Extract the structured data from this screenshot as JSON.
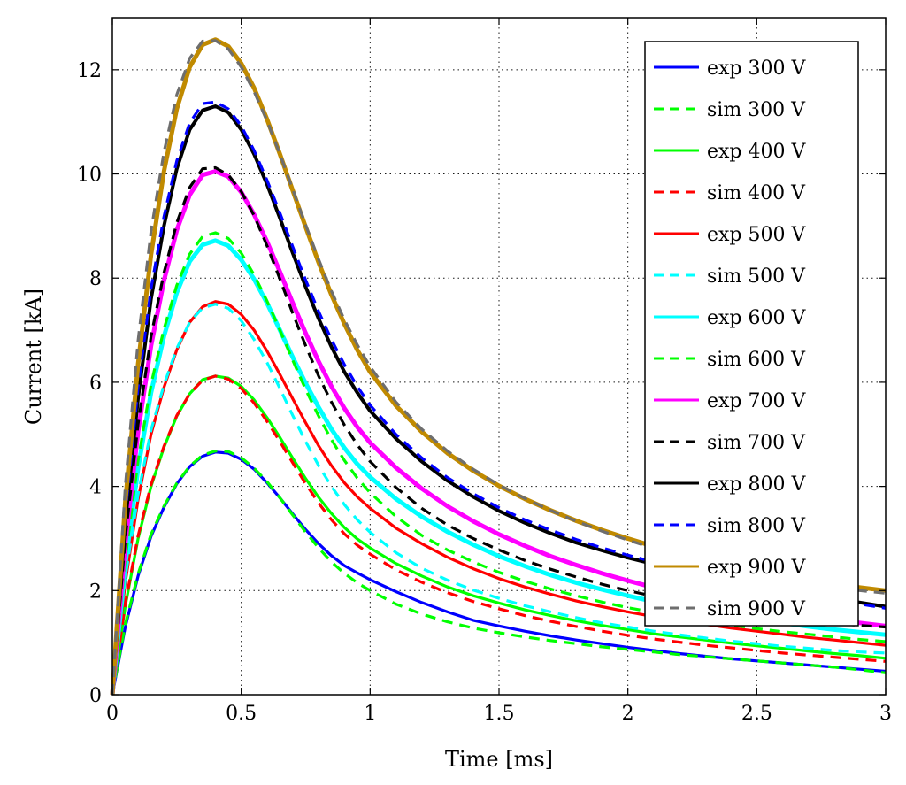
{
  "chart_data": {
    "type": "line",
    "title": "",
    "xlabel": "Time [ms]",
    "ylabel": "Current [kA]",
    "xlim": [
      0,
      3
    ],
    "ylim": [
      0,
      13
    ],
    "xticks": [
      0,
      0.5,
      1,
      1.5,
      2,
      2.5,
      3
    ],
    "xtick_labels": [
      "0",
      "0.5",
      "1",
      "1.5",
      "2",
      "2.5",
      "3"
    ],
    "yticks": [
      0,
      2,
      4,
      6,
      8,
      10,
      12
    ],
    "ytick_labels": [
      "0",
      "2",
      "4",
      "6",
      "8",
      "10",
      "12"
    ],
    "grid": true,
    "legend_position": "top-right",
    "x": [
      0,
      0.05,
      0.1,
      0.15,
      0.2,
      0.25,
      0.3,
      0.35,
      0.4,
      0.45,
      0.5,
      0.55,
      0.6,
      0.65,
      0.7,
      0.75,
      0.8,
      0.85,
      0.9,
      0.95,
      1.0,
      1.1,
      1.2,
      1.3,
      1.4,
      1.5,
      1.6,
      1.7,
      1.8,
      1.9,
      2.0,
      2.1,
      2.2,
      2.3,
      2.4,
      2.5,
      2.6,
      2.7,
      2.8,
      2.9,
      3.0
    ],
    "series": [
      {
        "name": "exp 300 V",
        "color": "#0000ff",
        "style": "solid",
        "width": 3.2,
        "values": [
          0,
          1.3,
          2.28,
          3.04,
          3.6,
          4.05,
          4.38,
          4.58,
          4.66,
          4.64,
          4.52,
          4.33,
          4.07,
          3.78,
          3.47,
          3.17,
          2.9,
          2.67,
          2.48,
          2.34,
          2.21,
          1.98,
          1.77,
          1.59,
          1.43,
          1.32,
          1.22,
          1.13,
          1.05,
          0.98,
          0.91,
          0.85,
          0.79,
          0.74,
          0.69,
          0.65,
          0.61,
          0.57,
          0.53,
          0.49,
          0.45
        ]
      },
      {
        "name": "sim 300 V",
        "color": "#00ff00",
        "style": "dashed",
        "width": 3.2,
        "values": [
          0,
          1.35,
          2.32,
          3.08,
          3.62,
          4.06,
          4.39,
          4.6,
          4.68,
          4.67,
          4.55,
          4.35,
          4.09,
          3.78,
          3.45,
          3.12,
          2.82,
          2.55,
          2.33,
          2.15,
          2.0,
          1.74,
          1.55,
          1.4,
          1.28,
          1.19,
          1.11,
          1.04,
          0.98,
          0.92,
          0.87,
          0.82,
          0.77,
          0.73,
          0.69,
          0.65,
          0.61,
          0.57,
          0.53,
          0.48,
          0.42
        ]
      },
      {
        "name": "exp 400 V",
        "color": "#00ff00",
        "style": "solid",
        "width": 3.2,
        "values": [
          0,
          1.7,
          3.0,
          4.0,
          4.75,
          5.35,
          5.78,
          6.05,
          6.12,
          6.08,
          5.92,
          5.66,
          5.32,
          4.94,
          4.54,
          4.15,
          3.79,
          3.48,
          3.21,
          2.99,
          2.82,
          2.52,
          2.28,
          2.07,
          1.9,
          1.76,
          1.63,
          1.52,
          1.42,
          1.33,
          1.25,
          1.17,
          1.11,
          1.05,
          0.99,
          0.94,
          0.89,
          0.84,
          0.79,
          0.75,
          0.7
        ]
      },
      {
        "name": "sim 400 V",
        "color": "#ff0000",
        "style": "dashed",
        "width": 3.2,
        "values": [
          0,
          1.75,
          3.05,
          4.03,
          4.77,
          5.36,
          5.78,
          6.04,
          6.12,
          6.06,
          5.88,
          5.6,
          5.25,
          4.86,
          4.45,
          4.05,
          3.68,
          3.36,
          3.09,
          2.87,
          2.7,
          2.4,
          2.16,
          1.96,
          1.79,
          1.65,
          1.52,
          1.41,
          1.31,
          1.22,
          1.14,
          1.07,
          1.01,
          0.95,
          0.9,
          0.85,
          0.8,
          0.76,
          0.72,
          0.68,
          0.64
        ]
      },
      {
        "name": "exp 500 V",
        "color": "#ff0000",
        "style": "solid",
        "width": 3.2,
        "values": [
          0,
          2.15,
          3.75,
          5.0,
          5.9,
          6.62,
          7.15,
          7.45,
          7.55,
          7.5,
          7.3,
          7.0,
          6.6,
          6.15,
          5.68,
          5.22,
          4.78,
          4.4,
          4.07,
          3.8,
          3.58,
          3.2,
          2.9,
          2.64,
          2.42,
          2.23,
          2.07,
          1.93,
          1.8,
          1.69,
          1.59,
          1.5,
          1.42,
          1.35,
          1.28,
          1.22,
          1.16,
          1.1,
          1.05,
          1.0,
          0.95
        ]
      },
      {
        "name": "sim 500 V",
        "color": "#00ffff",
        "style": "dashed",
        "width": 3.2,
        "values": [
          0,
          2.25,
          3.85,
          5.08,
          5.95,
          6.65,
          7.15,
          7.43,
          7.5,
          7.42,
          7.18,
          6.82,
          6.38,
          5.88,
          5.36,
          4.86,
          4.4,
          4.0,
          3.65,
          3.36,
          3.12,
          2.73,
          2.43,
          2.2,
          2.01,
          1.85,
          1.71,
          1.59,
          1.48,
          1.38,
          1.3,
          1.22,
          1.15,
          1.09,
          1.03,
          0.98,
          0.93,
          0.89,
          0.85,
          0.82,
          0.8
        ]
      },
      {
        "name": "exp 600 V",
        "color": "#00ffff",
        "style": "solid",
        "width": 5,
        "values": [
          0,
          2.5,
          4.35,
          5.8,
          6.88,
          7.72,
          8.32,
          8.64,
          8.72,
          8.62,
          8.35,
          7.98,
          7.52,
          7.0,
          6.48,
          5.98,
          5.52,
          5.1,
          4.74,
          4.43,
          4.18,
          3.76,
          3.42,
          3.13,
          2.88,
          2.66,
          2.47,
          2.3,
          2.15,
          2.02,
          1.9,
          1.79,
          1.69,
          1.6,
          1.52,
          1.45,
          1.38,
          1.31,
          1.25,
          1.2,
          1.15
        ]
      },
      {
        "name": "sim 600 V",
        "color": "#00ff00",
        "style": "dashed",
        "width": 3.2,
        "values": [
          0,
          2.6,
          4.5,
          5.96,
          7.02,
          7.86,
          8.46,
          8.8,
          8.87,
          8.76,
          8.48,
          8.06,
          7.56,
          7.0,
          6.42,
          5.86,
          5.35,
          4.9,
          4.5,
          4.16,
          3.88,
          3.42,
          3.06,
          2.78,
          2.55,
          2.35,
          2.18,
          2.03,
          1.9,
          1.78,
          1.67,
          1.58,
          1.49,
          1.41,
          1.34,
          1.27,
          1.21,
          1.16,
          1.11,
          1.06,
          1.02
        ]
      },
      {
        "name": "exp 700 V",
        "color": "#ff00ff",
        "style": "solid",
        "width": 5,
        "values": [
          0,
          2.9,
          5.05,
          6.7,
          7.95,
          8.92,
          9.6,
          9.98,
          10.05,
          9.95,
          9.65,
          9.22,
          8.7,
          8.12,
          7.52,
          6.94,
          6.4,
          5.92,
          5.5,
          5.14,
          4.84,
          4.36,
          3.96,
          3.62,
          3.33,
          3.08,
          2.86,
          2.66,
          2.49,
          2.33,
          2.19,
          2.06,
          1.95,
          1.84,
          1.75,
          1.66,
          1.58,
          1.51,
          1.44,
          1.38,
          1.32
        ]
      },
      {
        "name": "sim 700 V",
        "color": "#000000",
        "style": "dashed",
        "width": 3.2,
        "values": [
          0,
          3.0,
          5.2,
          6.88,
          8.1,
          9.06,
          9.74,
          10.1,
          10.12,
          9.98,
          9.66,
          9.2,
          8.62,
          7.98,
          7.32,
          6.7,
          6.12,
          5.62,
          5.18,
          4.8,
          4.48,
          3.98,
          3.58,
          3.26,
          3.0,
          2.78,
          2.58,
          2.41,
          2.26,
          2.12,
          2.0,
          1.89,
          1.79,
          1.7,
          1.62,
          1.55,
          1.48,
          1.42,
          1.37,
          1.33,
          1.3
        ]
      },
      {
        "name": "exp 800 V",
        "color": "#000000",
        "style": "solid",
        "width": 4,
        "values": [
          0,
          3.3,
          5.7,
          7.6,
          9.0,
          10.1,
          10.85,
          11.22,
          11.3,
          11.18,
          10.85,
          10.38,
          9.8,
          9.15,
          8.48,
          7.83,
          7.22,
          6.68,
          6.2,
          5.8,
          5.45,
          4.92,
          4.48,
          4.11,
          3.8,
          3.53,
          3.3,
          3.1,
          2.92,
          2.77,
          2.63,
          2.51,
          2.4,
          2.29,
          2.19,
          2.1,
          2.01,
          1.93,
          1.85,
          1.77,
          1.69
        ]
      },
      {
        "name": "sim 800 V",
        "color": "#0000ff",
        "style": "dashed",
        "width": 3.2,
        "values": [
          0,
          3.45,
          5.9,
          7.8,
          9.18,
          10.25,
          10.98,
          11.35,
          11.38,
          11.25,
          10.92,
          10.45,
          9.88,
          9.25,
          8.6,
          7.96,
          7.36,
          6.82,
          6.34,
          5.92,
          5.56,
          5.0,
          4.55,
          4.17,
          3.86,
          3.59,
          3.36,
          3.16,
          2.98,
          2.82,
          2.68,
          2.55,
          2.43,
          2.32,
          2.21,
          2.11,
          2.01,
          1.91,
          1.82,
          1.74,
          1.66
        ]
      },
      {
        "name": "exp 900 V",
        "color": "#c08a00",
        "style": "solid",
        "width": 5,
        "values": [
          0,
          3.7,
          6.35,
          8.45,
          10.05,
          11.25,
          12.05,
          12.48,
          12.58,
          12.45,
          12.12,
          11.65,
          11.05,
          10.38,
          9.68,
          8.98,
          8.3,
          7.68,
          7.12,
          6.62,
          6.2,
          5.55,
          5.05,
          4.64,
          4.3,
          4.01,
          3.76,
          3.54,
          3.34,
          3.16,
          3.0,
          2.85,
          2.71,
          2.58,
          2.46,
          2.35,
          2.26,
          2.19,
          2.12,
          2.06,
          2.0
        ]
      },
      {
        "name": "sim 900 V",
        "color": "#6e6e6e",
        "style": "dashed",
        "width": 3.2,
        "values": [
          0,
          4.0,
          6.8,
          8.9,
          10.42,
          11.52,
          12.22,
          12.55,
          12.56,
          12.4,
          12.05,
          11.58,
          11.02,
          10.38,
          9.7,
          9.02,
          8.36,
          7.75,
          7.2,
          6.72,
          6.3,
          5.62,
          5.1,
          4.68,
          4.33,
          4.03,
          3.77,
          3.54,
          3.33,
          3.14,
          2.97,
          2.81,
          2.66,
          2.52,
          2.4,
          2.3,
          2.21,
          2.13,
          2.06,
          2.0,
          1.95
        ]
      }
    ]
  }
}
